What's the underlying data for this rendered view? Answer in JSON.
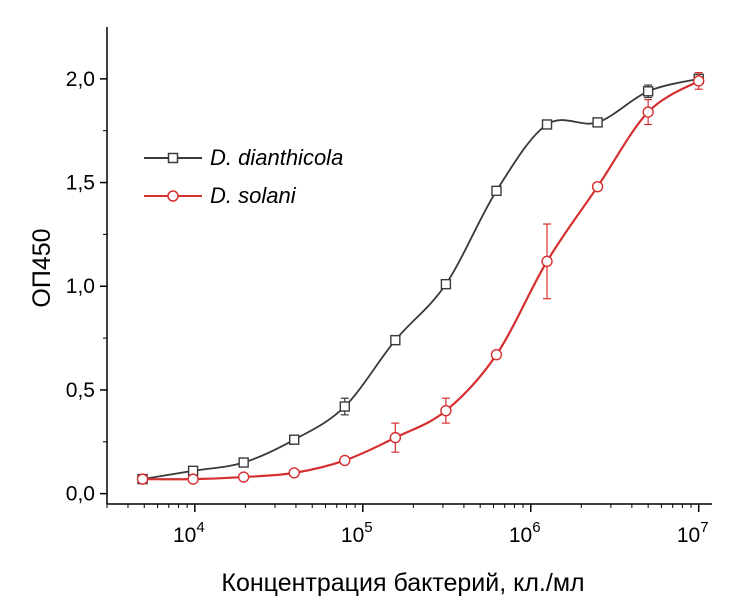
{
  "chart_data": {
    "type": "scatter",
    "xlabel": "Концентрация бактерий, кл./мл",
    "ylabel": "ОП450",
    "xscale": "log",
    "xlim": [
      3000,
      12000000
    ],
    "ylim": [
      -0.05,
      2.25
    ],
    "xticks": [
      {
        "value": 10000,
        "base": "10",
        "exp": "4"
      },
      {
        "value": 100000,
        "base": "10",
        "exp": "5"
      },
      {
        "value": 1000000,
        "base": "10",
        "exp": "6"
      },
      {
        "value": 10000000,
        "base": "10",
        "exp": "7"
      }
    ],
    "yticks": [
      {
        "value": 0.0,
        "label": "0,0"
      },
      {
        "value": 0.5,
        "label": "0,5"
      },
      {
        "value": 1.0,
        "label": "1,0"
      },
      {
        "value": 1.5,
        "label": "1,5"
      },
      {
        "value": 2.0,
        "label": "2,0"
      }
    ],
    "legend_position": "upper-left",
    "series": [
      {
        "name": "D. dianthicola",
        "color": "#3a3a3a",
        "marker": "square",
        "x": [
          4883,
          9766,
          19531,
          39063,
          78125,
          156250,
          312500,
          625000,
          1250000,
          2500000,
          5000000,
          10000000
        ],
        "y": [
          0.07,
          0.11,
          0.15,
          0.26,
          0.42,
          0.74,
          1.01,
          1.46,
          1.78,
          1.79,
          1.94,
          2.0
        ],
        "err": [
          0.02,
          0.01,
          0.01,
          0.02,
          0.04,
          0.02,
          0.02,
          0.01,
          0.02,
          0.01,
          0.03,
          0.02
        ]
      },
      {
        "name": "D. solani",
        "color": "#d62f2f",
        "marker": "circle",
        "x": [
          4883,
          9766,
          19531,
          39063,
          78125,
          156250,
          312500,
          625000,
          1250000,
          2500000,
          5000000,
          10000000
        ],
        "y": [
          0.07,
          0.07,
          0.08,
          0.1,
          0.16,
          0.27,
          0.4,
          0.67,
          1.12,
          1.48,
          1.84,
          1.99
        ],
        "err": [
          0.01,
          0.01,
          0.01,
          0.01,
          0.01,
          0.07,
          0.06,
          0.01,
          0.18,
          0.01,
          0.06,
          0.04
        ]
      }
    ]
  }
}
